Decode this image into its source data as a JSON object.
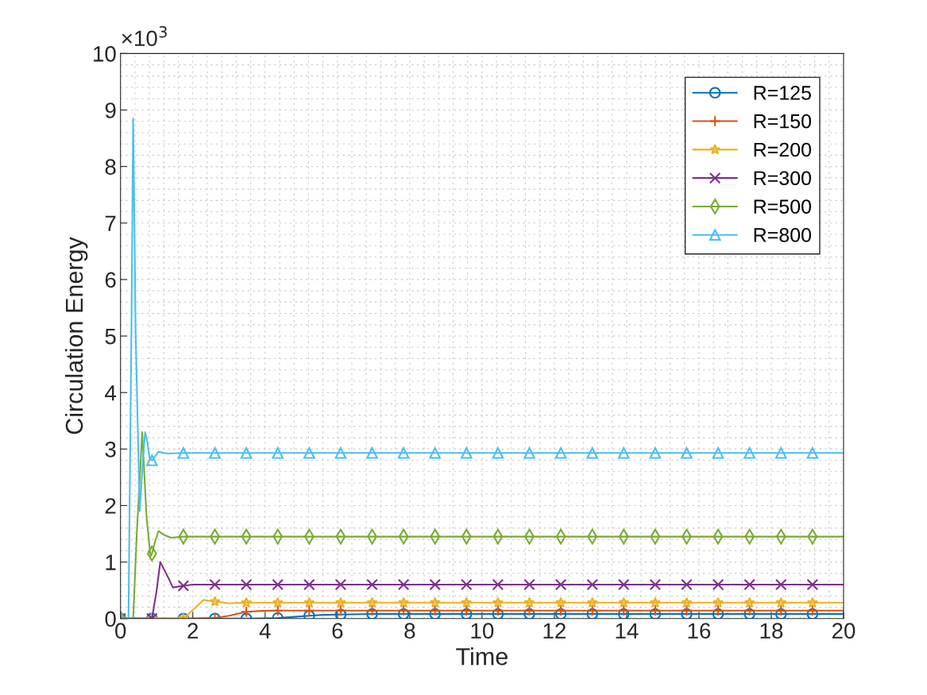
{
  "chart_data": {
    "type": "line",
    "xlabel": "Time",
    "ylabel": "Circulation Energy",
    "annotations": [
      "×10$^{3}$"
    ],
    "xlim": [
      0,
      20
    ],
    "xticks": [
      0,
      2,
      4,
      6,
      8,
      10,
      12,
      14,
      16,
      18,
      20
    ],
    "ylim": [
      0,
      10
    ],
    "yticks": [
      0,
      1,
      2,
      3,
      4,
      5,
      6,
      7,
      8,
      9,
      10
    ],
    "grid": true,
    "legend": "top right",
    "line_style": "solid",
    "series": [
      {
        "name": "R=125",
        "color": "#0072bd",
        "marker": "circle",
        "x": [
          0,
          0.87,
          1.74,
          2.61,
          3.48,
          4.35,
          4.8,
          5.22,
          5.6,
          6.09,
          6.96,
          7.83,
          8.7,
          9.57,
          10.44,
          11.31,
          12.18,
          13.05,
          13.92,
          14.79,
          15.66,
          16.53,
          17.4,
          18.27,
          19.14,
          20
        ],
        "values": [
          0,
          0,
          0,
          0,
          0,
          0.01,
          0.03,
          0.05,
          0.065,
          0.07,
          0.08,
          0.08,
          0.08,
          0.08,
          0.08,
          0.08,
          0.08,
          0.08,
          0.08,
          0.08,
          0.08,
          0.08,
          0.08,
          0.08,
          0.08,
          0.08
        ]
      },
      {
        "name": "R=150",
        "color": "#d95319",
        "marker": "plus",
        "x": [
          0,
          0.87,
          1.74,
          2.61,
          3.0,
          3.48,
          3.9,
          4.35,
          5.22,
          6.09,
          6.96,
          7.83,
          8.7,
          9.57,
          10.44,
          11.31,
          12.18,
          13.05,
          13.92,
          14.79,
          15.66,
          16.53,
          17.4,
          18.27,
          19.14,
          20
        ],
        "values": [
          0,
          0,
          0,
          0.01,
          0.05,
          0.12,
          0.135,
          0.14,
          0.14,
          0.14,
          0.14,
          0.14,
          0.14,
          0.14,
          0.14,
          0.14,
          0.14,
          0.14,
          0.14,
          0.14,
          0.14,
          0.14,
          0.14,
          0.14,
          0.14,
          0.14
        ]
      },
      {
        "name": "R=200",
        "color": "#edb120",
        "marker": "star",
        "x": [
          0,
          0.87,
          1.74,
          2.0,
          2.3,
          2.61,
          3.0,
          3.48,
          4.35,
          5.22,
          6.09,
          6.96,
          7.83,
          8.7,
          9.57,
          10.44,
          11.31,
          12.18,
          13.05,
          13.92,
          14.79,
          15.66,
          16.53,
          17.4,
          18.27,
          19.14,
          20
        ],
        "values": [
          0,
          0,
          0,
          0.15,
          0.33,
          0.3,
          0.27,
          0.28,
          0.28,
          0.28,
          0.28,
          0.28,
          0.28,
          0.28,
          0.28,
          0.28,
          0.28,
          0.28,
          0.28,
          0.28,
          0.28,
          0.28,
          0.28,
          0.28,
          0.28,
          0.28,
          0.28
        ]
      },
      {
        "name": "R=300",
        "color": "#7e2f8e",
        "marker": "cross",
        "x": [
          0,
          0.87,
          1.0,
          1.1,
          1.3,
          1.45,
          1.74,
          2.0,
          2.61,
          3.48,
          4.35,
          5.22,
          6.09,
          6.96,
          7.83,
          8.7,
          9.57,
          10.44,
          11.31,
          12.18,
          13.05,
          13.92,
          14.79,
          15.66,
          16.53,
          17.4,
          18.27,
          19.14,
          20
        ],
        "values": [
          0,
          0,
          0.5,
          1.0,
          0.75,
          0.55,
          0.58,
          0.6,
          0.6,
          0.6,
          0.6,
          0.6,
          0.6,
          0.6,
          0.6,
          0.6,
          0.6,
          0.6,
          0.6,
          0.6,
          0.6,
          0.6,
          0.6,
          0.6,
          0.6,
          0.6,
          0.6,
          0.6,
          0.6
        ]
      },
      {
        "name": "R=500",
        "color": "#77ac30",
        "marker": "diamond",
        "x": [
          0,
          0.35,
          0.45,
          0.6,
          0.72,
          0.83,
          0.87,
          0.95,
          1.05,
          1.2,
          1.4,
          1.74,
          2.61,
          3.48,
          4.35,
          5.22,
          6.09,
          6.96,
          7.83,
          8.7,
          9.57,
          10.44,
          11.31,
          12.18,
          13.05,
          13.92,
          14.79,
          15.66,
          16.53,
          17.4,
          18.27,
          19.14,
          20
        ],
        "values": [
          0,
          0,
          1.5,
          3.3,
          1.8,
          1.1,
          1.15,
          1.35,
          1.55,
          1.48,
          1.43,
          1.45,
          1.45,
          1.45,
          1.45,
          1.45,
          1.45,
          1.45,
          1.45,
          1.45,
          1.45,
          1.45,
          1.45,
          1.45,
          1.45,
          1.45,
          1.45,
          1.45,
          1.45,
          1.45,
          1.45,
          1.45,
          1.45
        ]
      },
      {
        "name": "R=800",
        "color": "#4dbeee",
        "marker": "triangle",
        "x": [
          0,
          0.22,
          0.3,
          0.35,
          0.42,
          0.53,
          0.62,
          0.68,
          0.75,
          0.8,
          0.87,
          1.05,
          1.3,
          1.74,
          2.61,
          3.48,
          4.35,
          5.22,
          6.09,
          6.96,
          7.83,
          8.7,
          9.57,
          10.44,
          11.31,
          12.18,
          13.05,
          13.92,
          14.79,
          15.66,
          16.53,
          17.4,
          18.27,
          19.14,
          20
        ],
        "values": [
          0,
          0,
          5.0,
          8.85,
          5.0,
          1.9,
          2.8,
          3.3,
          3.1,
          2.85,
          2.8,
          2.95,
          2.92,
          2.93,
          2.93,
          2.93,
          2.93,
          2.93,
          2.93,
          2.93,
          2.93,
          2.93,
          2.93,
          2.93,
          2.93,
          2.93,
          2.93,
          2.93,
          2.93,
          2.93,
          2.93,
          2.93,
          2.93,
          2.93,
          2.93
        ]
      }
    ]
  }
}
